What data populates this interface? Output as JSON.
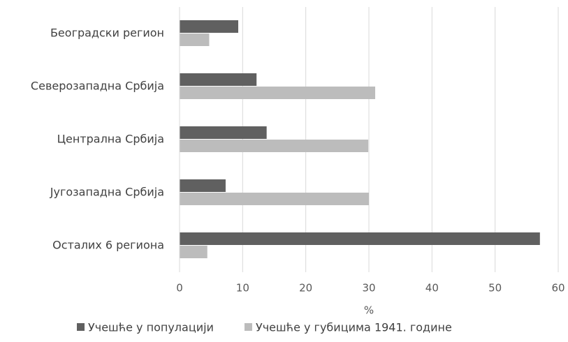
{
  "chart_data": {
    "type": "bar",
    "orientation": "horizontal",
    "categories": [
      "Београдски регион",
      "Северозападна Србија",
      "Централна Србија",
      "Југозападна Србија",
      "Осталих 6 региона"
    ],
    "series": [
      {
        "name": "Учешће у популацији",
        "color": "#606060",
        "values": [
          9.3,
          12.2,
          13.8,
          7.3,
          57.1
        ]
      },
      {
        "name": "Учешће у губицима 1941. године",
        "color": "#bcbcbc",
        "values": [
          4.7,
          31.0,
          29.9,
          30.0,
          4.4
        ]
      }
    ],
    "xlabel": "%",
    "xlim": [
      0,
      60
    ],
    "xticks": [
      0,
      10,
      20,
      30,
      40,
      50,
      60
    ],
    "grid": true,
    "legend": "bottom"
  }
}
